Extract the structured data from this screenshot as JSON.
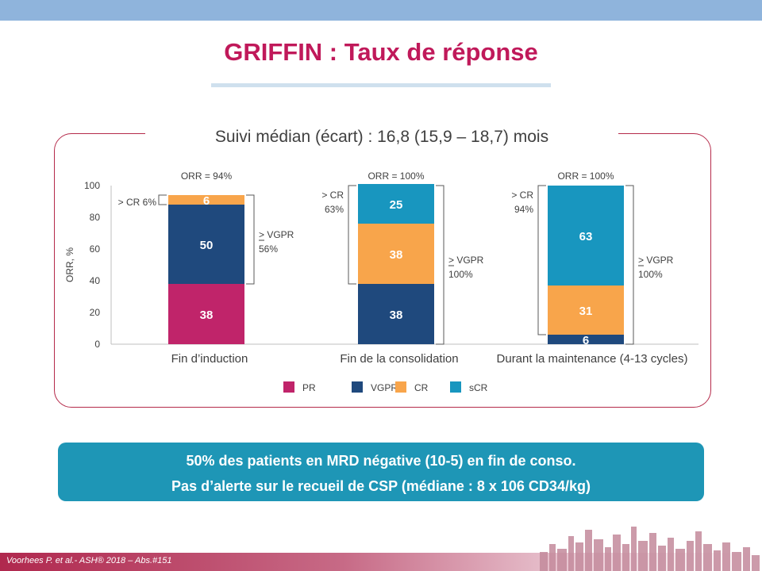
{
  "slide": {
    "title": "GRIFFIN : Taux de réponse",
    "subtitle": "Suivi médian (écart) : 16,8 (15,9 – 18,7) mois",
    "callout_line1": "50% des patients en MRD négative (10-5)  en fin de conso.",
    "callout_line2": "Pas d’alerte sur le recueil de CSP (médiane : 8 x 106 CD34/kg)",
    "footer": "Voorhees P. et al.- ASH® 2018  – Abs.#151"
  },
  "colors": {
    "PR": "#c0246a",
    "VGPR": "#1f497d",
    "CR": "#f8a54b",
    "sCR": "#1896bf",
    "title": "#c0195a",
    "frame": "#b52a4a",
    "callout": "#1e96b6"
  },
  "chart_data": {
    "type": "bar",
    "stacked": true,
    "categories": [
      "Fin d’induction",
      "Fin de la consolidation",
      "Durant la maintenance (4-13 cycles)"
    ],
    "series": [
      {
        "name": "PR",
        "values": [
          38,
          0,
          0
        ]
      },
      {
        "name": "VGPR",
        "values": [
          50,
          38,
          6
        ]
      },
      {
        "name": "CR",
        "values": [
          6,
          38,
          31
        ]
      },
      {
        "name": "sCR",
        "values": [
          0,
          25,
          63
        ]
      }
    ],
    "ylabel": "ORR, %",
    "ylim": [
      0,
      100
    ],
    "yticks": [
      0,
      20,
      40,
      60,
      80,
      100
    ],
    "legend": [
      "PR",
      "VGPR",
      "CR",
      "sCR"
    ],
    "legend_position": "bottom",
    "grid": false,
    "orr_labels": [
      "ORR = 94%",
      "ORR = 100%",
      "ORR = 100%"
    ],
    "annotations": [
      {
        "group": 0,
        "side": "left",
        "lines": [
          "> CR 6%"
        ],
        "from": 88,
        "to": 94
      },
      {
        "group": 0,
        "side": "right",
        "lines": [
          "> VGPR",
          "56%"
        ],
        "from": 38,
        "to": 94
      },
      {
        "group": 1,
        "side": "left",
        "lines": [
          "> CR",
          "63%"
        ],
        "from": 38,
        "to": 100
      },
      {
        "group": 1,
        "side": "right",
        "lines": [
          "> VGPR",
          "100%"
        ],
        "from": 0,
        "to": 100
      },
      {
        "group": 2,
        "side": "left",
        "lines": [
          "> CR",
          "94%"
        ],
        "from": 6,
        "to": 100
      },
      {
        "group": 2,
        "side": "right",
        "lines": [
          "> VGPR",
          "100%"
        ],
        "from": 0,
        "to": 100
      }
    ]
  }
}
